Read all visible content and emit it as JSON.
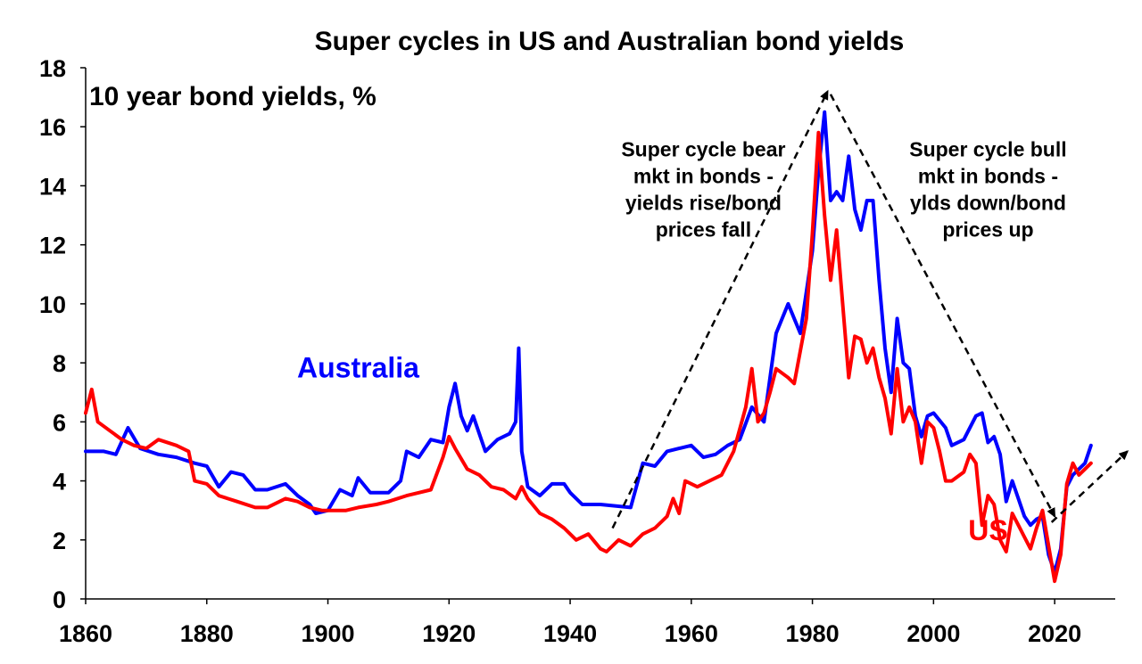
{
  "chart_data": {
    "type": "line",
    "title": "Super cycles in US and Australian bond yields",
    "ylabel": "10 year bond yields, %",
    "xlim": [
      1860,
      2030
    ],
    "ylim": [
      0,
      18
    ],
    "x_ticks": [
      1860,
      1880,
      1900,
      1920,
      1940,
      1960,
      1980,
      2000,
      2020
    ],
    "y_ticks": [
      0,
      2,
      4,
      6,
      8,
      10,
      12,
      14,
      16,
      18
    ],
    "grid": false,
    "colors": {
      "Australia": "#0000ff",
      "US": "#ff0000"
    },
    "series": [
      {
        "name": "Australia",
        "label": "Australia",
        "color": "#0000ff",
        "points": [
          [
            1860,
            5.0
          ],
          [
            1863,
            5.0
          ],
          [
            1865,
            4.9
          ],
          [
            1867,
            5.8
          ],
          [
            1869,
            5.1
          ],
          [
            1872,
            4.9
          ],
          [
            1875,
            4.8
          ],
          [
            1878,
            4.6
          ],
          [
            1880,
            4.5
          ],
          [
            1882,
            3.8
          ],
          [
            1884,
            4.3
          ],
          [
            1886,
            4.2
          ],
          [
            1888,
            3.7
          ],
          [
            1890,
            3.7
          ],
          [
            1893,
            3.9
          ],
          [
            1895,
            3.5
          ],
          [
            1897,
            3.2
          ],
          [
            1898,
            2.9
          ],
          [
            1900,
            3.0
          ],
          [
            1902,
            3.7
          ],
          [
            1904,
            3.5
          ],
          [
            1905,
            4.1
          ],
          [
            1907,
            3.6
          ],
          [
            1910,
            3.6
          ],
          [
            1912,
            4.0
          ],
          [
            1913,
            5.0
          ],
          [
            1915,
            4.8
          ],
          [
            1917,
            5.4
          ],
          [
            1919,
            5.3
          ],
          [
            1920,
            6.5
          ],
          [
            1921,
            7.3
          ],
          [
            1922,
            6.2
          ],
          [
            1923,
            5.7
          ],
          [
            1924,
            6.2
          ],
          [
            1926,
            5.0
          ],
          [
            1928,
            5.4
          ],
          [
            1930,
            5.6
          ],
          [
            1931,
            6.0
          ],
          [
            1931.5,
            8.5
          ],
          [
            1932,
            5.0
          ],
          [
            1933,
            3.8
          ],
          [
            1935,
            3.5
          ],
          [
            1937,
            3.9
          ],
          [
            1939,
            3.9
          ],
          [
            1940,
            3.6
          ],
          [
            1942,
            3.2
          ],
          [
            1945,
            3.2
          ],
          [
            1950,
            3.1
          ],
          [
            1952,
            4.6
          ],
          [
            1954,
            4.5
          ],
          [
            1956,
            5.0
          ],
          [
            1958,
            5.1
          ],
          [
            1960,
            5.2
          ],
          [
            1962,
            4.8
          ],
          [
            1964,
            4.9
          ],
          [
            1966,
            5.2
          ],
          [
            1968,
            5.4
          ],
          [
            1970,
            6.5
          ],
          [
            1972,
            6.0
          ],
          [
            1974,
            9.0
          ],
          [
            1976,
            10.0
          ],
          [
            1978,
            9.0
          ],
          [
            1980,
            11.8
          ],
          [
            1981,
            14.5
          ],
          [
            1982,
            16.5
          ],
          [
            1983,
            13.5
          ],
          [
            1984,
            13.8
          ],
          [
            1985,
            13.5
          ],
          [
            1986,
            15.0
          ],
          [
            1987,
            13.2
          ],
          [
            1988,
            12.5
          ],
          [
            1989,
            13.5
          ],
          [
            1990,
            13.5
          ],
          [
            1991,
            10.8
          ],
          [
            1992,
            8.5
          ],
          [
            1993,
            7.0
          ],
          [
            1994,
            9.5
          ],
          [
            1995,
            8.0
          ],
          [
            1996,
            7.8
          ],
          [
            1997,
            6.2
          ],
          [
            1998,
            5.5
          ],
          [
            1999,
            6.2
          ],
          [
            2000,
            6.3
          ],
          [
            2002,
            5.8
          ],
          [
            2003,
            5.2
          ],
          [
            2005,
            5.4
          ],
          [
            2007,
            6.2
          ],
          [
            2008,
            6.3
          ],
          [
            2009,
            5.3
          ],
          [
            2010,
            5.5
          ],
          [
            2011,
            4.9
          ],
          [
            2012,
            3.3
          ],
          [
            2013,
            4.0
          ],
          [
            2014,
            3.4
          ],
          [
            2015,
            2.8
          ],
          [
            2016,
            2.5
          ],
          [
            2017,
            2.7
          ],
          [
            2018,
            2.8
          ],
          [
            2019,
            1.5
          ],
          [
            2020,
            0.9
          ],
          [
            2021,
            1.7
          ],
          [
            2022,
            3.8
          ],
          [
            2023,
            4.2
          ],
          [
            2024,
            4.4
          ],
          [
            2025,
            4.6
          ],
          [
            2026,
            5.2
          ]
        ]
      },
      {
        "name": "US",
        "label": "US",
        "color": "#ff0000",
        "points": [
          [
            1860,
            6.3
          ],
          [
            1861,
            7.1
          ],
          [
            1862,
            6.0
          ],
          [
            1864,
            5.7
          ],
          [
            1866,
            5.4
          ],
          [
            1868,
            5.2
          ],
          [
            1870,
            5.1
          ],
          [
            1872,
            5.4
          ],
          [
            1875,
            5.2
          ],
          [
            1877,
            5.0
          ],
          [
            1878,
            4.0
          ],
          [
            1880,
            3.9
          ],
          [
            1882,
            3.5
          ],
          [
            1885,
            3.3
          ],
          [
            1888,
            3.1
          ],
          [
            1890,
            3.1
          ],
          [
            1893,
            3.4
          ],
          [
            1895,
            3.3
          ],
          [
            1897,
            3.1
          ],
          [
            1899,
            3.0
          ],
          [
            1900,
            3.0
          ],
          [
            1903,
            3.0
          ],
          [
            1905,
            3.1
          ],
          [
            1908,
            3.2
          ],
          [
            1910,
            3.3
          ],
          [
            1913,
            3.5
          ],
          [
            1915,
            3.6
          ],
          [
            1917,
            3.7
          ],
          [
            1919,
            4.8
          ],
          [
            1920,
            5.5
          ],
          [
            1921,
            5.1
          ],
          [
            1923,
            4.4
          ],
          [
            1925,
            4.2
          ],
          [
            1927,
            3.8
          ],
          [
            1929,
            3.7
          ],
          [
            1931,
            3.4
          ],
          [
            1932,
            3.8
          ],
          [
            1933,
            3.4
          ],
          [
            1935,
            2.9
          ],
          [
            1937,
            2.7
          ],
          [
            1939,
            2.4
          ],
          [
            1941,
            2.0
          ],
          [
            1943,
            2.2
          ],
          [
            1945,
            1.7
          ],
          [
            1946,
            1.6
          ],
          [
            1948,
            2.0
          ],
          [
            1950,
            1.8
          ],
          [
            1952,
            2.2
          ],
          [
            1954,
            2.4
          ],
          [
            1956,
            2.8
          ],
          [
            1957,
            3.4
          ],
          [
            1958,
            2.9
          ],
          [
            1959,
            4.0
          ],
          [
            1961,
            3.8
          ],
          [
            1963,
            4.0
          ],
          [
            1965,
            4.2
          ],
          [
            1967,
            5.0
          ],
          [
            1969,
            6.5
          ],
          [
            1970,
            7.8
          ],
          [
            1971,
            6.0
          ],
          [
            1972,
            6.3
          ],
          [
            1973,
            7.0
          ],
          [
            1974,
            7.8
          ],
          [
            1976,
            7.5
          ],
          [
            1977,
            7.3
          ],
          [
            1978,
            8.4
          ],
          [
            1979,
            9.5
          ],
          [
            1980,
            12.4
          ],
          [
            1981,
            15.8
          ],
          [
            1982,
            13.0
          ],
          [
            1983,
            10.8
          ],
          [
            1984,
            12.5
          ],
          [
            1985,
            10.0
          ],
          [
            1986,
            7.5
          ],
          [
            1987,
            8.9
          ],
          [
            1988,
            8.8
          ],
          [
            1989,
            8.0
          ],
          [
            1990,
            8.5
          ],
          [
            1991,
            7.5
          ],
          [
            1992,
            6.8
          ],
          [
            1993,
            5.6
          ],
          [
            1994,
            7.8
          ],
          [
            1995,
            6.0
          ],
          [
            1996,
            6.5
          ],
          [
            1997,
            6.0
          ],
          [
            1998,
            4.6
          ],
          [
            1999,
            6.0
          ],
          [
            2000,
            5.8
          ],
          [
            2001,
            5.0
          ],
          [
            2002,
            4.0
          ],
          [
            2003,
            4.0
          ],
          [
            2005,
            4.3
          ],
          [
            2006,
            4.9
          ],
          [
            2007,
            4.6
          ],
          [
            2008,
            2.5
          ],
          [
            2009,
            3.5
          ],
          [
            2010,
            3.2
          ],
          [
            2011,
            2.0
          ],
          [
            2012,
            1.6
          ],
          [
            2013,
            2.9
          ],
          [
            2014,
            2.5
          ],
          [
            2015,
            2.1
          ],
          [
            2016,
            1.7
          ],
          [
            2017,
            2.4
          ],
          [
            2018,
            3.0
          ],
          [
            2019,
            1.8
          ],
          [
            2020,
            0.6
          ],
          [
            2021,
            1.5
          ],
          [
            2022,
            3.9
          ],
          [
            2023,
            4.6
          ],
          [
            2024,
            4.2
          ],
          [
            2025,
            4.4
          ],
          [
            2026,
            4.6
          ]
        ]
      }
    ],
    "annotations": [
      {
        "lines": [
          "Super cycle bear",
          "mkt in bonds -",
          "yields rise/bond",
          "prices fall"
        ],
        "x": 1962,
        "y": 15.0
      },
      {
        "lines": [
          "Super cycle bull",
          "mkt in bonds -",
          "ylds down/bond",
          "prices up"
        ],
        "x": 2009,
        "y": 15.0
      }
    ],
    "trend_arrows": [
      {
        "from": [
          1947,
          2.4
        ],
        "to": [
          1982.5,
          17.2
        ]
      },
      {
        "from": [
          1983,
          17.1
        ],
        "to": [
          2020,
          2.8
        ]
      },
      {
        "from": [
          2019.5,
          2.6
        ],
        "to": [
          2032,
          5.0
        ]
      }
    ],
    "series_label_positions": {
      "Australia": [
        1905,
        7.5
      ],
      "US": [
        2009,
        2.0
      ]
    }
  }
}
